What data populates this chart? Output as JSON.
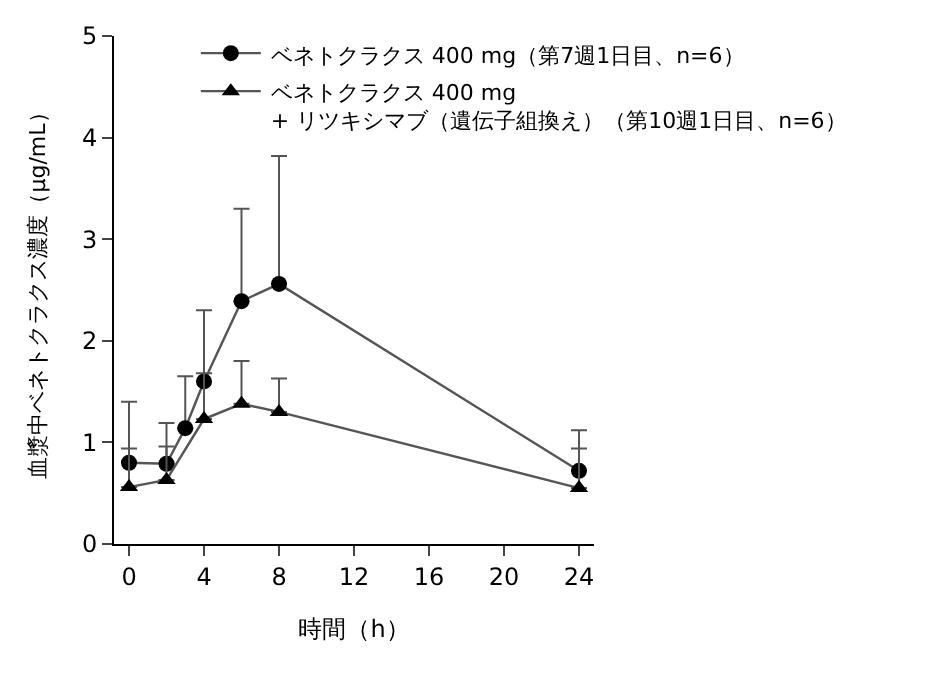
{
  "chart_data": {
    "type": "line",
    "xlabel": "時間（h）",
    "ylabel": "血漿中ベネトクラクス濃度（μg/mL）",
    "xlim": [
      -0.8,
      24.8
    ],
    "xticks": [
      0,
      4,
      8,
      12,
      16,
      20,
      24
    ],
    "ylim": [
      0,
      5
    ],
    "yticks": [
      0,
      1,
      2,
      3,
      4,
      5
    ],
    "legend": "top",
    "line_style": "solid",
    "series": [
      {
        "name": "ベネトクラクス 400 mg（第7週1日目、n=6）",
        "color": "#000000",
        "marker": "circle",
        "x": [
          0,
          2,
          3,
          4,
          6,
          8,
          24
        ],
        "values": [
          0.8,
          0.79,
          1.14,
          1.6,
          2.39,
          2.56,
          0.72
        ],
        "errors": [
          [
            0.8,
            1.4
          ],
          [
            0.79,
            1.19
          ],
          [
            1.14,
            1.65
          ],
          [
            1.6,
            2.3
          ],
          [
            2.39,
            3.3
          ],
          [
            2.56,
            3.82
          ],
          [
            0.72,
            1.12
          ]
        ]
      },
      {
        "name": "ベネトクラクス 400 mg\n+ リツキシマブ（遺伝子組換え）（第10週1日目、n=6）",
        "color": "#000000",
        "marker": "triangle",
        "x": [
          0,
          2,
          4,
          6,
          8,
          24
        ],
        "values": [
          0.56,
          0.63,
          1.23,
          1.38,
          1.3,
          0.55
        ],
        "errors": [
          [
            0.56,
            0.94
          ],
          [
            0.63,
            0.96
          ],
          [
            1.23,
            1.68
          ],
          [
            1.38,
            1.8
          ],
          [
            1.3,
            1.63
          ],
          [
            0.55,
            0.94
          ]
        ]
      }
    ]
  }
}
